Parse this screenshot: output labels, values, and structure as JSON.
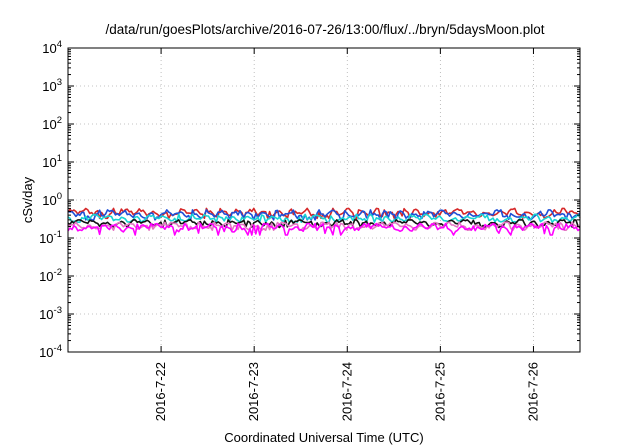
{
  "chart_data": {
    "type": "line",
    "title": "/data/run/goesPlots/archive/2016-07-26/13:00/flux/../bryn/5daysMoon.plot",
    "xlabel": "Coordinated Universal Time (UTC)",
    "ylabel": "cSv/day",
    "yscale": "log",
    "ylim": [
      0.0001,
      10000
    ],
    "xlim": [
      0,
      5.5
    ],
    "grid": true,
    "y_ticks": [
      {
        "exp": -4,
        "base": "10",
        "label": "-4"
      },
      {
        "exp": -3,
        "base": "10",
        "label": "-3"
      },
      {
        "exp": -2,
        "base": "10",
        "label": "-2"
      },
      {
        "exp": -1,
        "base": "10",
        "label": "-1"
      },
      {
        "exp": 0,
        "base": "10",
        "label": "0"
      },
      {
        "exp": 1,
        "base": "10",
        "label": "1"
      },
      {
        "exp": 2,
        "base": "10",
        "label": "2"
      },
      {
        "exp": 3,
        "base": "10",
        "label": "3"
      },
      {
        "exp": 4,
        "base": "10",
        "label": "4"
      }
    ],
    "x_ticks": [
      {
        "label": "2016-7-22",
        "value": 1.0
      },
      {
        "label": "2016-7-23",
        "value": 2.0
      },
      {
        "label": "2016-7-24",
        "value": 3.0
      },
      {
        "label": "2016-7-25",
        "value": 4.0
      },
      {
        "label": "2016-7-26",
        "value": 5.0
      }
    ],
    "series": [
      {
        "name": "series-red",
        "color": "#d62728",
        "base": 0.46,
        "min": 0.33,
        "max": 0.6
      },
      {
        "name": "series-blue",
        "color": "#1f4fd6",
        "base": 0.42,
        "min": 0.3,
        "max": 0.55
      },
      {
        "name": "series-cyan",
        "color": "#19d3d3",
        "base": 0.33,
        "min": 0.26,
        "max": 0.42
      },
      {
        "name": "series-black",
        "color": "#111111",
        "base": 0.25,
        "min": 0.19,
        "max": 0.3
      },
      {
        "name": "series-pink",
        "color": "#e377c2",
        "base": 0.21,
        "min": 0.16,
        "max": 0.26
      },
      {
        "name": "series-magenta",
        "color": "#ff00ff",
        "base": 0.19,
        "min": 0.12,
        "max": 0.24
      }
    ]
  }
}
